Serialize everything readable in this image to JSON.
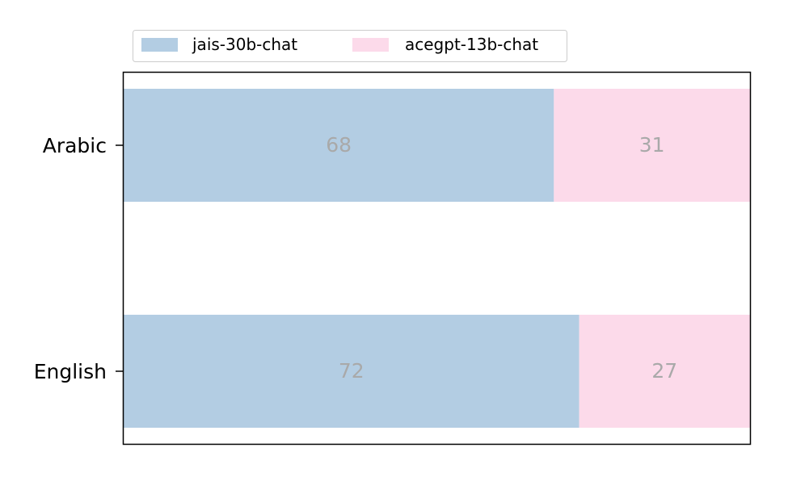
{
  "chart_data": {
    "type": "bar",
    "orientation": "horizontal",
    "stacked": true,
    "categories": [
      "Arabic",
      "English"
    ],
    "series": [
      {
        "name": "jais-30b-chat",
        "values": [
          68,
          72
        ],
        "color": "#b3cde3"
      },
      {
        "name": "acegpt-13b-chat",
        "values": [
          31,
          27
        ],
        "color": "#fcdaea"
      }
    ],
    "xlim": [
      0,
      99
    ],
    "x_ticks_visible": false,
    "grid": false,
    "legend_placement": "top-left",
    "legend_columns": 2,
    "label_color": "#a9a9a9"
  }
}
